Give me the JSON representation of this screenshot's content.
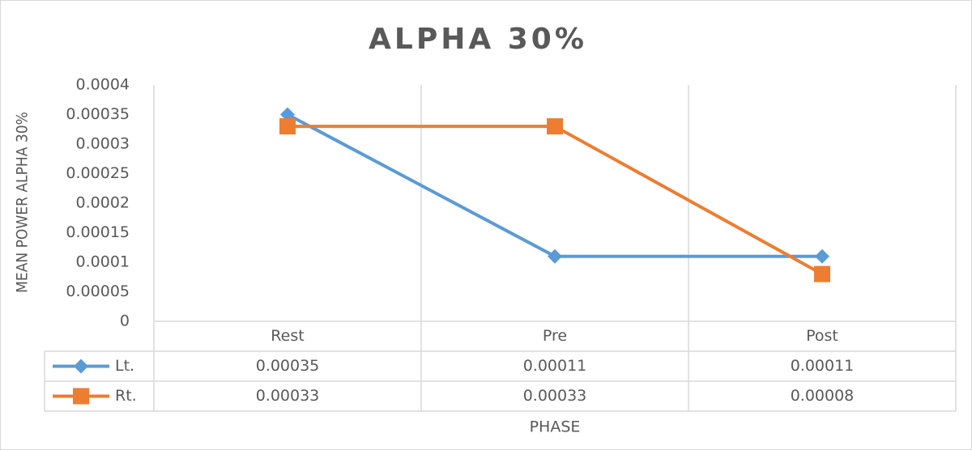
{
  "chart_data": {
    "type": "line",
    "title": "ALPHA 30%",
    "x_label": "PHASE",
    "y_label": "MEAN POWER ALPHA 30%",
    "categories": [
      "Rest",
      "Pre",
      "Post"
    ],
    "series": [
      {
        "name": "Lt.",
        "color": "#5B9BD5",
        "marker": "diamond",
        "values": [
          0.00035,
          0.00011,
          0.00011
        ]
      },
      {
        "name": "Rt.",
        "color": "#ED7D31",
        "marker": "square",
        "values": [
          0.00033,
          0.00033,
          8e-05
        ]
      }
    ],
    "ylim": [
      0,
      0.0004
    ],
    "yticks": [
      0,
      5e-05,
      0.0001,
      0.00015,
      0.0002,
      0.00025,
      0.0003,
      0.00035,
      0.0004
    ],
    "data_table": true
  }
}
